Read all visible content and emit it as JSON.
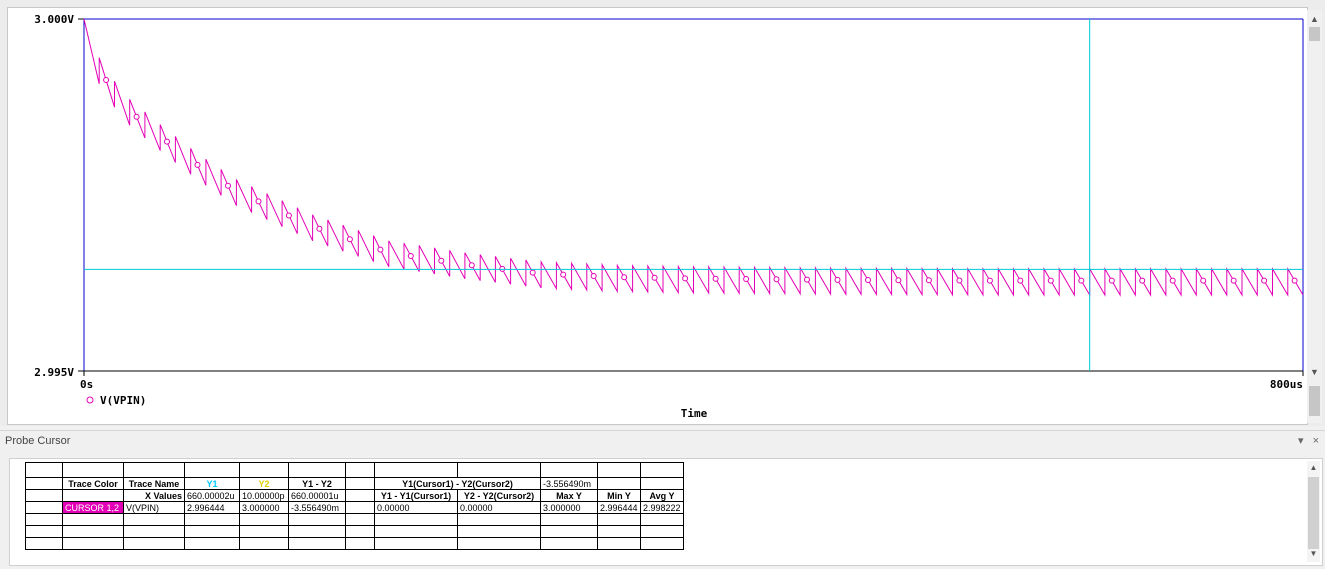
{
  "plot": {
    "y_max_label": "3.000V",
    "y_min_label": "2.995V",
    "x_min_label": "0s",
    "x_max_label": "800us",
    "x_axis_title": "Time",
    "trace_legend": "V(VPIN)",
    "trace_color": "#e400b6",
    "cursor_color": "#00c8d8",
    "axis_color": "#0000cc"
  },
  "chart_data": {
    "type": "line",
    "title": "",
    "xlabel": "Time",
    "ylabel": "",
    "xlim": [
      0,
      800
    ],
    "x_unit": "us",
    "ylim": [
      2.995,
      3.0
    ],
    "y_unit": "V",
    "series": [
      {
        "name": "V(VPIN)",
        "x": [
          0,
          10,
          25,
          50,
          75,
          100,
          150,
          200,
          250,
          300,
          350,
          400,
          500,
          600,
          700,
          800
        ],
        "y": [
          3.0,
          2.99945,
          2.99895,
          2.9985,
          2.99808,
          2.99772,
          2.99722,
          2.99685,
          2.99668,
          2.99655,
          2.9965,
          2.99648,
          2.99646,
          2.99645,
          2.99645,
          2.99645
        ],
        "ripple_period_us": 10,
        "ripple_amplitude_V": 0.00037
      }
    ],
    "cursors": {
      "x1": "660.00002u",
      "y1": "2.996444"
    },
    "grid": false,
    "legend": "bottom-left"
  },
  "probe": {
    "title": "Probe Cursor",
    "pin_icon": "▾",
    "close_icon": "×",
    "table": {
      "headers": [
        "Trace Color",
        "Trace Name",
        "Y1",
        "Y2",
        "Y1 - Y2",
        "",
        "Y1(Cursor1) - Y2(Cursor2)",
        "",
        "-3.556490m",
        "",
        ""
      ],
      "xrow": [
        "",
        "X Values",
        "660.00002u",
        "10.00000p",
        "660.00001u",
        "",
        "Y1 - Y1(Cursor1)",
        "Y2 - Y2(Cursor2)",
        "Max Y",
        "Min Y",
        "Avg Y"
      ],
      "data": [
        "CURSOR 1,2",
        "V(VPIN)",
        "2.996444",
        "3.000000",
        "-3.556490m",
        "",
        "0.00000",
        "0.00000",
        "3.000000",
        "2.996444",
        "2.998222"
      ]
    }
  }
}
